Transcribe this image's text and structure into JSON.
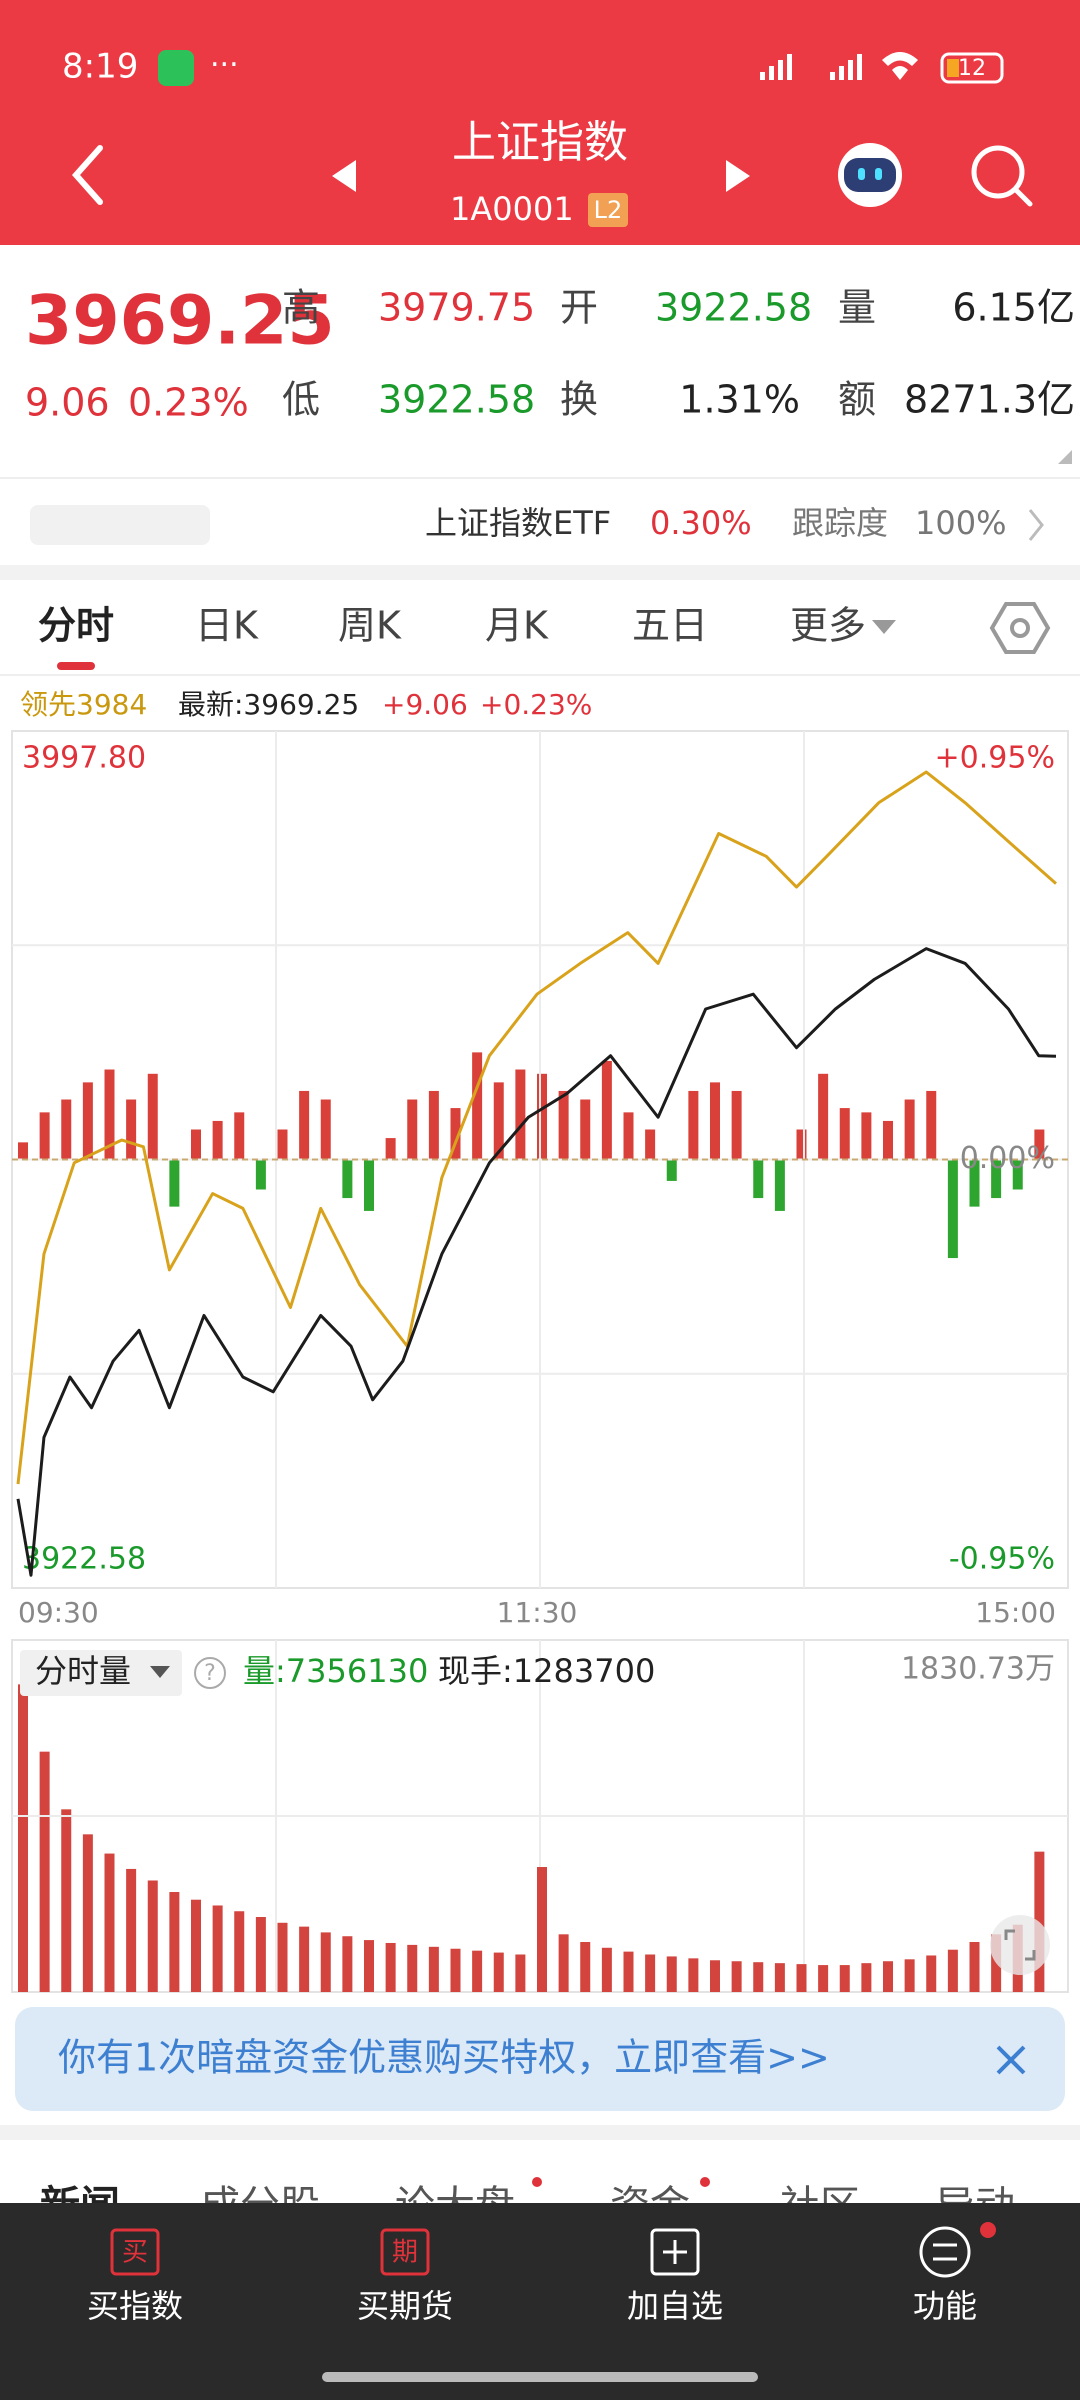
{
  "status_bar": {
    "time": "8:19",
    "battery": "12"
  },
  "header": {
    "title": "上证指数",
    "code": "1A0001",
    "badge": "L2"
  },
  "quote": {
    "price": "3969.25",
    "change": "9.06",
    "change_pct": "0.23%",
    "stats": [
      [
        "高",
        "3979.75"
      ],
      [
        "开",
        "3922.58"
      ],
      [
        "量",
        "6.15亿"
      ],
      [
        "低",
        "3922.58"
      ],
      [
        "换",
        "1.31%"
      ],
      [
        "额",
        "8271.3亿"
      ]
    ]
  },
  "etf": {
    "name": "上证指数ETF",
    "change": "0.30%",
    "tracking_label": "跟踪度",
    "tracking": "100%"
  },
  "tabs": [
    "分时",
    "日K",
    "周K",
    "月K",
    "五日",
    "更多"
  ],
  "summary": {
    "leader": "领先3984",
    "latest": "最新:3969.25",
    "change": "+9.06",
    "change_pct": "+0.23%"
  },
  "chart_data": [
    {
      "type": "bar",
      "xlim": [
        0,
        240
      ],
      "ylim": [
        -100,
        100
      ],
      "up_color": "#d9403a",
      "down_color": "#2ea52e",
      "x": [
        0,
        5,
        10,
        15,
        20,
        25,
        30,
        35,
        40,
        45,
        50,
        55,
        60,
        65,
        70,
        75,
        80,
        85,
        90,
        95,
        100,
        105,
        110,
        115,
        120,
        125,
        130,
        135,
        140,
        145,
        150,
        155,
        160,
        165,
        170,
        175,
        180,
        185,
        190,
        195,
        200,
        205,
        210,
        215,
        220,
        225,
        230,
        235
      ],
      "values": [
        4,
        11,
        14,
        18,
        21,
        14,
        20,
        -11,
        7,
        9,
        11,
        -7,
        7,
        16,
        14,
        -9,
        -12,
        5,
        14,
        16,
        12,
        25,
        18,
        21,
        20,
        16,
        14,
        23,
        11,
        7,
        -5,
        16,
        18,
        16,
        -9,
        -12,
        7,
        20,
        12,
        11,
        9,
        14,
        16,
        -23,
        -11,
        -9,
        -7,
        7
      ]
    },
    {
      "type": "line",
      "xlim": [
        0,
        240
      ],
      "ylim": [
        3922.58,
        3997.8
      ],
      "xticks": [
        {
          "value": 0,
          "label": "09:30"
        },
        {
          "value": 120,
          "label": "11:30"
        },
        {
          "value": 240,
          "label": "15:00"
        }
      ],
      "yticks": [
        {
          "value": 3922.58,
          "label": "3922.58"
        },
        {
          "value": 3997.8,
          "label": "3997.80"
        }
      ],
      "y2lim": [
        -0.95,
        0.95
      ],
      "y2ticks": [
        {
          "value": 0.95,
          "label": "+0.95%"
        },
        {
          "value": 0,
          "label": "0.00%"
        },
        {
          "value": -0.95,
          "label": "-0.95%"
        }
      ],
      "grid": true,
      "series": [
        {
          "color": "#d9a21b",
          "x": [
            0,
            6,
            13,
            24,
            29,
            35,
            45,
            52,
            63,
            70,
            79,
            90,
            98,
            109,
            120,
            130,
            141,
            148,
            162,
            173,
            180,
            187,
            199,
            210,
            219,
            229,
            240
          ],
          "values": [
            3931.7,
            3951.9,
            3959.9,
            3961.9,
            3961.3,
            3950.5,
            3957.2,
            3955.9,
            3947.2,
            3955.9,
            3949.2,
            3943.8,
            3958.6,
            3969.3,
            3974.7,
            3977.4,
            3980.1,
            3977.4,
            3988.8,
            3986.8,
            3984.1,
            3986.8,
            3991.5,
            3994.2,
            3991.5,
            3988.1,
            3984.4
          ]
        },
        {
          "color": "#1c1c1c",
          "x": [
            0,
            3,
            6,
            12,
            17,
            22,
            28,
            35,
            43,
            52,
            59,
            70,
            77,
            82,
            89,
            98,
            109,
            118,
            127,
            137,
            148,
            159,
            170,
            180,
            189,
            198,
            210,
            219,
            229,
            236,
            240
          ],
          "values": [
            3930.4,
            3923.7,
            3935.8,
            3941.1,
            3938.4,
            3942.5,
            3945.2,
            3938.4,
            3946.5,
            3941.1,
            3939.8,
            3946.5,
            3943.8,
            3939.1,
            3942.5,
            3951.9,
            3959.9,
            3963.9,
            3966.0,
            3969.3,
            3963.9,
            3973.4,
            3974.7,
            3970.0,
            3973.4,
            3976.0,
            3978.7,
            3977.4,
            3973.4,
            3969.3,
            3969.25
          ]
        }
      ]
    },
    {
      "type": "bar",
      "title": "分时量",
      "stats": [
        "量:7356130",
        "现手:1283700"
      ],
      "xlim": [
        0,
        240
      ],
      "ylim": [
        0,
        1830.73
      ],
      "yticks": [
        {
          "value": 1830.73,
          "label": "1830.73万"
        }
      ],
      "color": "#d2443d",
      "x": [
        0,
        5,
        10,
        15,
        20,
        25,
        30,
        35,
        40,
        45,
        50,
        55,
        60,
        65,
        70,
        75,
        80,
        85,
        90,
        95,
        100,
        105,
        110,
        115,
        120,
        125,
        130,
        135,
        140,
        145,
        150,
        155,
        160,
        165,
        170,
        175,
        180,
        185,
        190,
        195,
        200,
        205,
        210,
        215,
        220,
        225,
        230,
        235
      ],
      "values": [
        1600,
        1250,
        950,
        820,
        720,
        640,
        580,
        520,
        480,
        450,
        420,
        390,
        360,
        340,
        310,
        290,
        270,
        255,
        245,
        235,
        225,
        215,
        205,
        195,
        650,
        300,
        260,
        230,
        210,
        195,
        185,
        175,
        165,
        160,
        155,
        150,
        145,
        140,
        140,
        150,
        160,
        170,
        190,
        220,
        260,
        300,
        350,
        730
      ]
    }
  ],
  "banner": {
    "text": "你有1次暗盘资金优惠购买特权，立即查看>>"
  },
  "news_tabs": [
    "新闻",
    "成分股",
    "论大盘",
    "资金",
    "社区",
    "异动"
  ],
  "nav": [
    {
      "icon": "买",
      "label": "买指数"
    },
    {
      "icon": "期",
      "label": "买期货"
    },
    {
      "label": "加自选"
    },
    {
      "label": "功能"
    }
  ]
}
